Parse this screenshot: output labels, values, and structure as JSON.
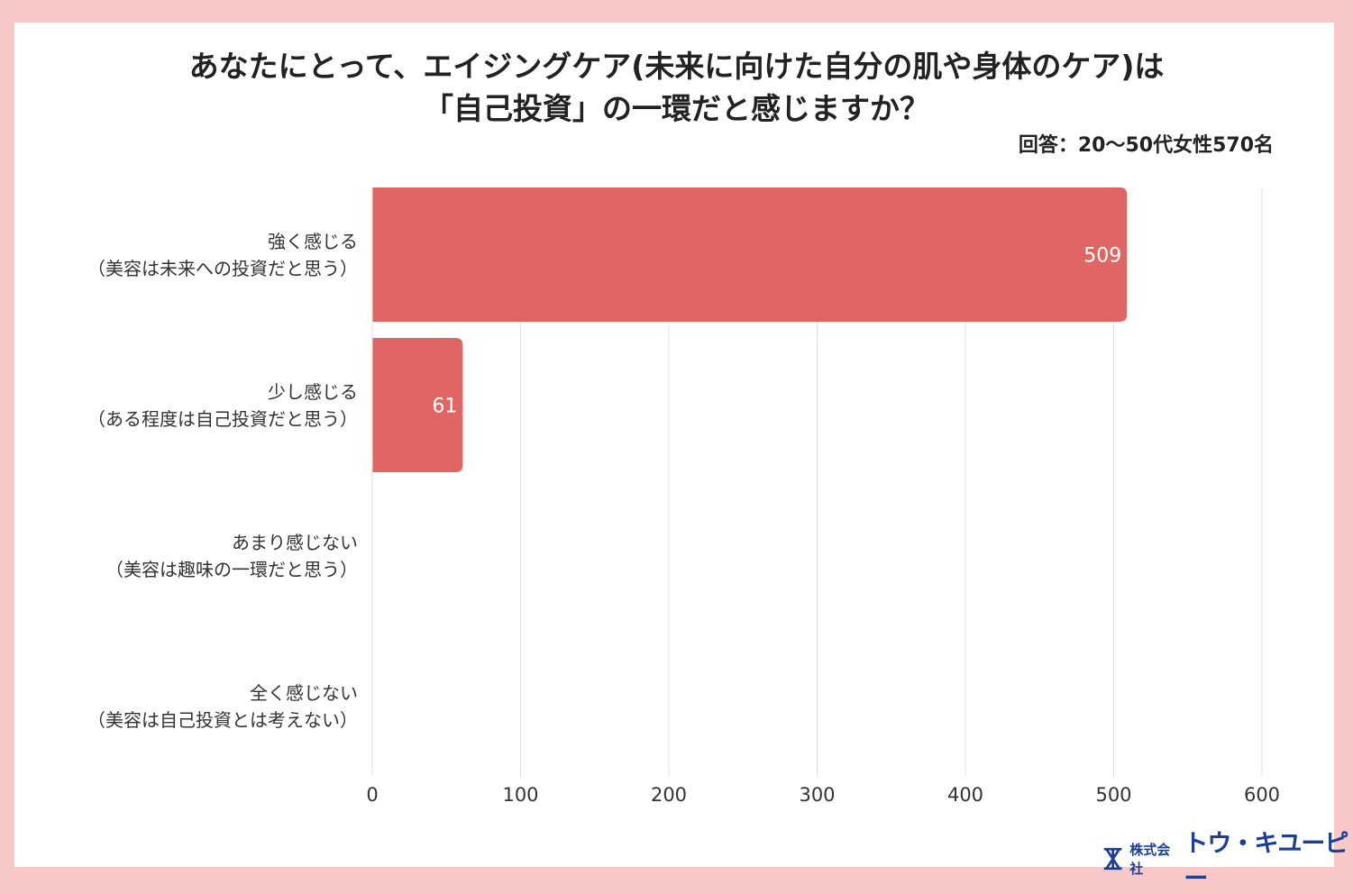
{
  "chart_data": {
    "type": "bar",
    "orientation": "horizontal",
    "title_lines": [
      "あなたにとって、エイジングケア(未来に向けた自分の肌や身体のケア)は",
      "「自己投資」の一環だと感じますか？"
    ],
    "note": "回答：20〜50代女性570名",
    "categories": [
      {
        "label": "強く感じる",
        "sub": "（美容は未来への投資だと思う）"
      },
      {
        "label": "少し感じる",
        "sub": "（ある程度は自己投資だと思う）"
      },
      {
        "label": "あまり感じない",
        "sub": "（美容は趣味の一環だと思う）"
      },
      {
        "label": "全く感じない",
        "sub": "（美容は自己投資とは考えない）"
      }
    ],
    "values": [
      509,
      61,
      0,
      0
    ],
    "data_labels": [
      "509",
      "61",
      "",
      ""
    ],
    "xlim": [
      0,
      600
    ],
    "xticks": [
      "0",
      "100",
      "200",
      "300",
      "400",
      "500",
      "600"
    ],
    "grid": true,
    "bar_color": "#e06666"
  },
  "logo": {
    "small": "株式会社",
    "big": "トウ・キユーピー"
  }
}
